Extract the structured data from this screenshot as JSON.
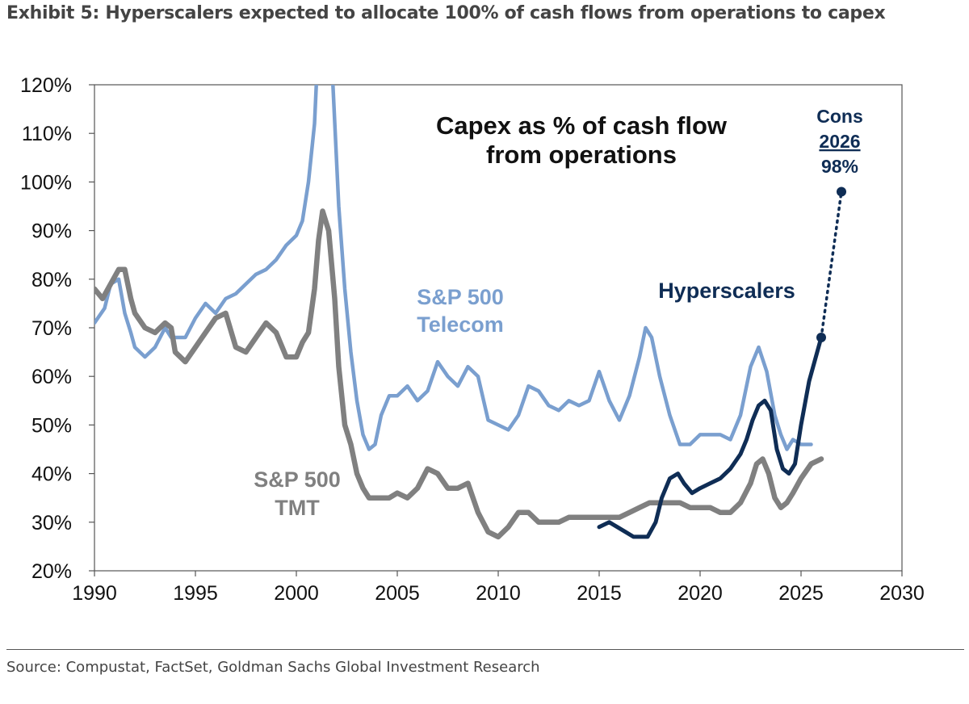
{
  "exhibit_title": "Exhibit 5: Hyperscalers expected to allocate 100% of cash flows from operations to capex",
  "source": "Source: Compustat, FactSet, Goldman Sachs Global Investment Research",
  "colors": {
    "telecom": "#7a9fcf",
    "tmt": "#808080",
    "hyperscalers": "#0f2d55",
    "axis": "#555555"
  },
  "chart_data": {
    "type": "line",
    "title_lines": [
      "Capex as % of cash flow",
      "from operations"
    ],
    "xlim": [
      1990,
      2030
    ],
    "ylim": [
      20,
      120
    ],
    "x_ticks": [
      1990,
      1995,
      2000,
      2005,
      2010,
      2015,
      2020,
      2025,
      2030
    ],
    "x_tick_labels": [
      "1990",
      "1995",
      "2000",
      "2005",
      "2010",
      "2015",
      "2020",
      "2025",
      "2030"
    ],
    "y_ticks": [
      20,
      30,
      40,
      50,
      60,
      70,
      80,
      90,
      100,
      110,
      120
    ],
    "y_tick_labels": [
      "20%",
      "30%",
      "40%",
      "50%",
      "60%",
      "70%",
      "80%",
      "90%",
      "100%",
      "110%",
      "120%"
    ],
    "series": [
      {
        "key": "telecom",
        "label_lines": [
          "S&P 500",
          "Telecom"
        ],
        "x": [
          1990,
          1990.5,
          1990.8,
          1991.2,
          1991.5,
          1991.8,
          1992,
          1992.5,
          1993,
          1993.5,
          1993.8,
          1994,
          1994.5,
          1995,
          1995.5,
          1996,
          1996.5,
          1997,
          1997.5,
          1998,
          1998.5,
          1999,
          1999.5,
          2000,
          2000.3,
          2000.6,
          2000.9,
          2001.1,
          2001.6,
          2001.8,
          2002.1,
          2002.4,
          2002.7,
          2003,
          2003.3,
          2003.6,
          2003.9,
          2004.2,
          2004.6,
          2005,
          2005.5,
          2006,
          2006.5,
          2007,
          2007.5,
          2008,
          2008.5,
          2009,
          2009.5,
          2010,
          2010.5,
          2011,
          2011.5,
          2012,
          2012.5,
          2013,
          2013.5,
          2014,
          2014.5,
          2015,
          2015.5,
          2016,
          2016.5,
          2017,
          2017.3,
          2017.6,
          2018,
          2018.5,
          2019,
          2019.5,
          2020,
          2020.5,
          2021,
          2021.5,
          2022,
          2022.5,
          2022.9,
          2023.3,
          2023.7,
          2024,
          2024.3,
          2024.6,
          2025,
          2025.5
        ],
        "y": [
          71,
          74,
          79,
          80,
          73,
          69,
          66,
          64,
          66,
          70,
          68,
          68,
          68,
          72,
          75,
          73,
          76,
          77,
          79,
          81,
          82,
          84,
          87,
          89,
          92,
          100,
          112,
          130,
          130,
          121,
          95,
          78,
          65,
          55,
          48,
          45,
          46,
          52,
          56,
          56,
          58,
          55,
          57,
          63,
          60,
          58,
          62,
          60,
          51,
          50,
          49,
          52,
          58,
          57,
          54,
          53,
          55,
          54,
          55,
          61,
          55,
          51,
          56,
          64,
          70,
          68,
          60,
          52,
          46,
          46,
          48,
          48,
          48,
          47,
          52,
          62,
          66,
          61,
          52,
          48,
          45,
          47,
          46,
          46
        ]
      },
      {
        "key": "tmt",
        "label_lines": [
          "S&P 500",
          "TMT"
        ],
        "x": [
          1990,
          1990.4,
          1990.8,
          1991.2,
          1991.5,
          1991.8,
          1992,
          1992.5,
          1993,
          1993.5,
          1993.8,
          1994,
          1994.5,
          1995,
          1995.5,
          1996,
          1996.5,
          1997,
          1997.5,
          1998,
          1998.5,
          1999,
          1999.5,
          2000,
          2000.3,
          2000.6,
          2000.9,
          2001.1,
          2001.3,
          2001.6,
          2001.9,
          2002.1,
          2002.4,
          2002.7,
          2003,
          2003.3,
          2003.6,
          2003.9,
          2004.3,
          2004.6,
          2005,
          2005.5,
          2006,
          2006.5,
          2007,
          2007.5,
          2008,
          2008.5,
          2009,
          2009.5,
          2010,
          2010.5,
          2011,
          2011.5,
          2012,
          2012.5,
          2013,
          2013.5,
          2014,
          2014.5,
          2015,
          2015.5,
          2016,
          2016.5,
          2017,
          2017.5,
          2018,
          2018.5,
          2019,
          2019.5,
          2020,
          2020.5,
          2021,
          2021.5,
          2022,
          2022.5,
          2022.8,
          2023.1,
          2023.4,
          2023.7,
          2024,
          2024.3,
          2024.6,
          2025,
          2025.5,
          2026
        ],
        "y": [
          78,
          76,
          79,
          82,
          82,
          76,
          73,
          70,
          69,
          71,
          70,
          65,
          63,
          66,
          69,
          72,
          73,
          66,
          65,
          68,
          71,
          69,
          64,
          64,
          67,
          69,
          78,
          88,
          94,
          90,
          76,
          62,
          50,
          46,
          40,
          37,
          35,
          35,
          35,
          35,
          36,
          35,
          37,
          41,
          40,
          37,
          37,
          38,
          32,
          28,
          27,
          29,
          32,
          32,
          30,
          30,
          30,
          31,
          31,
          31,
          31,
          31,
          31,
          32,
          33,
          34,
          34,
          34,
          34,
          33,
          33,
          33,
          32,
          32,
          34,
          38,
          42,
          43,
          40,
          35,
          33,
          34,
          36,
          39,
          42,
          43
        ]
      },
      {
        "key": "hyperscalers",
        "label_lines": [
          "Hyperscalers"
        ],
        "x": [
          2015,
          2015.5,
          2015.9,
          2016.3,
          2016.7,
          2017,
          2017.4,
          2017.8,
          2018.1,
          2018.5,
          2018.9,
          2019.2,
          2019.6,
          2020,
          2020.5,
          2021,
          2021.5,
          2022,
          2022.3,
          2022.6,
          2022.9,
          2023.2,
          2023.5,
          2023.8,
          2024.1,
          2024.4,
          2024.7,
          2025,
          2025.4,
          2025.8,
          2026
        ],
        "y": [
          29,
          30,
          29,
          28,
          27,
          27,
          27,
          30,
          35,
          39,
          40,
          38,
          36,
          37,
          38,
          39,
          41,
          44,
          47,
          51,
          54,
          55,
          53,
          45,
          41,
          40,
          42,
          50,
          59,
          65,
          68
        ]
      }
    ],
    "projection": {
      "key": "hyperscalers",
      "from": {
        "x": 2026,
        "y": 68
      },
      "to": {
        "x": 2027,
        "y": 98
      },
      "label_lines": [
        "Cons",
        "2026",
        "98%"
      ]
    }
  }
}
